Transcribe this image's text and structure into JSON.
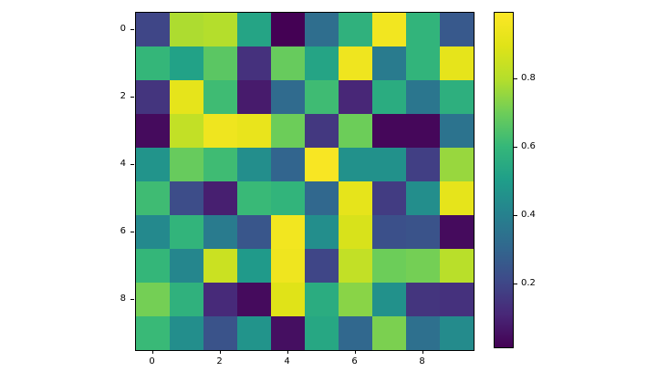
{
  "figure": {
    "background": "#ffffff",
    "title": "",
    "x_axis": {
      "tick_labels": [
        "0",
        "2",
        "4",
        "6",
        "8"
      ],
      "tick_positions": [
        0,
        2,
        4,
        6,
        8
      ]
    },
    "y_axis": {
      "tick_labels": [
        "0",
        "2",
        "4",
        "6",
        "8"
      ],
      "tick_positions": [
        0,
        2,
        4,
        6,
        8
      ]
    },
    "colorbar": {
      "tick_labels": [
        "0.8",
        "0.6",
        "0.4",
        "0.2"
      ],
      "tick_values": [
        0.8,
        0.6,
        0.4,
        0.2
      ],
      "top_color": "#fde725",
      "bottom_color": "#440154"
    }
  },
  "chart_data": {
    "type": "heatmap",
    "colormap": "viridis",
    "rows": 10,
    "cols": 10,
    "x_tick_labels": [
      "0",
      "2",
      "4",
      "6",
      "8"
    ],
    "y_tick_labels": [
      "0",
      "2",
      "4",
      "6",
      "8"
    ],
    "colorbar_ticks": [
      0.2,
      0.4,
      0.6,
      0.8
    ],
    "vmin": 0.015,
    "vmax": 0.995,
    "legend_position": "right-colorbar",
    "grid": false,
    "title": "",
    "xlabel": "",
    "ylabel": "",
    "values": [
      [
        0.2,
        0.79,
        0.8,
        0.53,
        0.01,
        0.33,
        0.58,
        0.96,
        0.59,
        0.26
      ],
      [
        0.6,
        0.52,
        0.67,
        0.14,
        0.69,
        0.53,
        0.95,
        0.38,
        0.59,
        0.92
      ],
      [
        0.15,
        0.92,
        0.62,
        0.08,
        0.32,
        0.62,
        0.11,
        0.56,
        0.36,
        0.57
      ],
      [
        0.04,
        0.83,
        0.95,
        0.93,
        0.7,
        0.16,
        0.7,
        0.03,
        0.03,
        0.35
      ],
      [
        0.47,
        0.69,
        0.62,
        0.45,
        0.3,
        0.98,
        0.46,
        0.46,
        0.18,
        0.76
      ],
      [
        0.62,
        0.22,
        0.09,
        0.61,
        0.59,
        0.31,
        0.92,
        0.17,
        0.45,
        0.92
      ],
      [
        0.43,
        0.59,
        0.38,
        0.25,
        0.96,
        0.45,
        0.88,
        0.23,
        0.24,
        0.04
      ],
      [
        0.6,
        0.42,
        0.85,
        0.49,
        0.95,
        0.2,
        0.83,
        0.7,
        0.71,
        0.81
      ],
      [
        0.71,
        0.58,
        0.12,
        0.04,
        0.9,
        0.56,
        0.74,
        0.46,
        0.15,
        0.14
      ],
      [
        0.61,
        0.45,
        0.24,
        0.47,
        0.05,
        0.54,
        0.31,
        0.72,
        0.34,
        0.44
      ]
    ]
  }
}
